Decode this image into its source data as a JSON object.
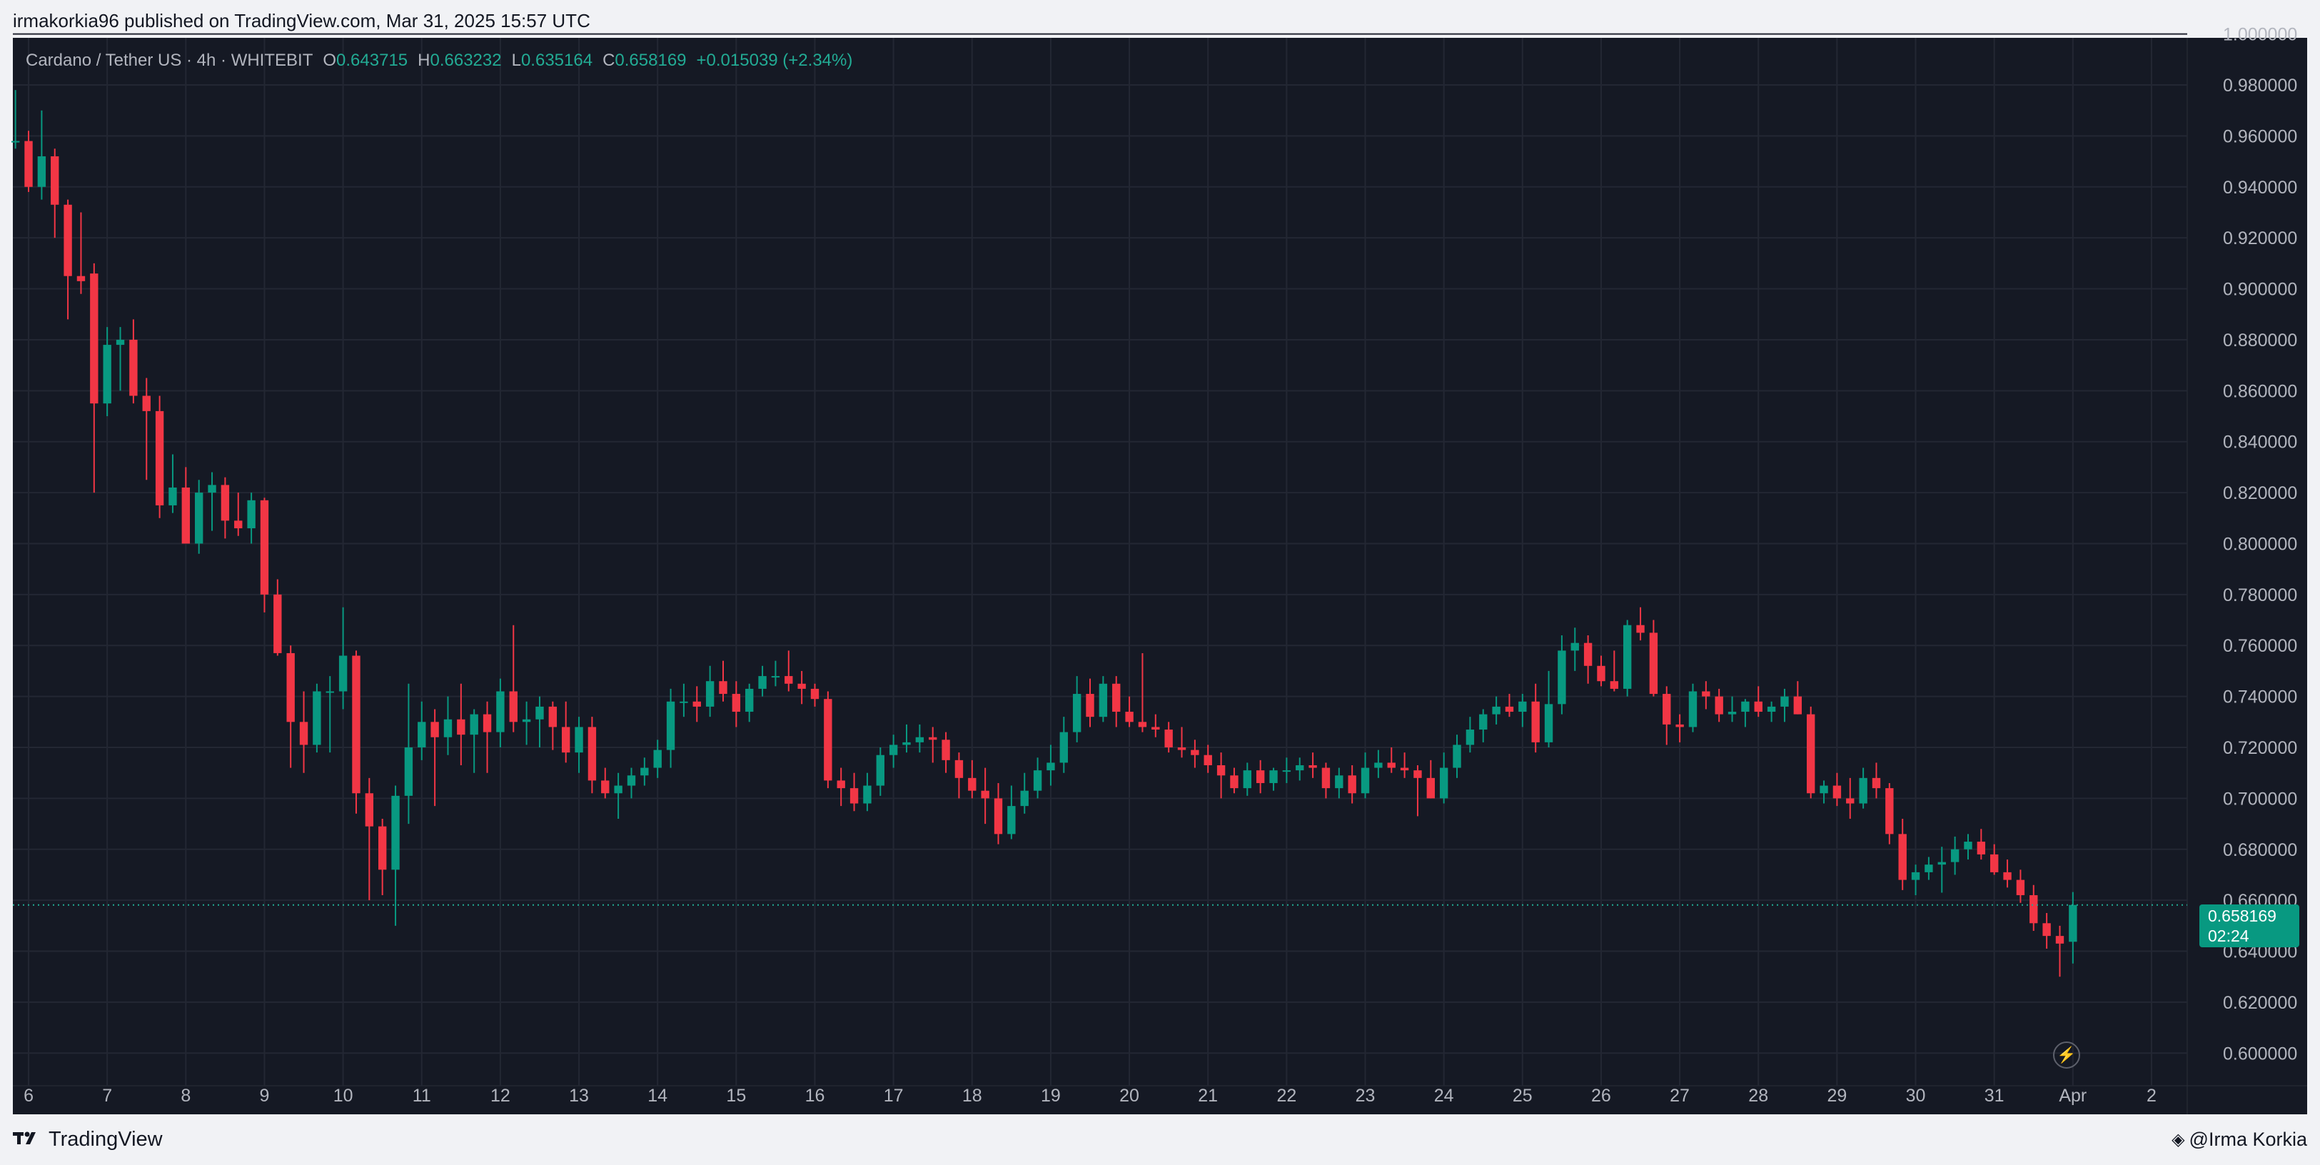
{
  "header": {
    "publisher_line": "irmakorkia96 published on TradingView.com, Mar 31, 2025 15:57 UTC"
  },
  "legend": {
    "symbol_line": "Cardano / Tether US · 4h · WHITEBIT",
    "o_label": "O",
    "o_value": "0.643715",
    "h_label": "H",
    "h_value": "0.663232",
    "l_label": "L",
    "l_value": "0.635164",
    "c_label": "C",
    "c_value": "0.658169",
    "change": "+0.015039 (+2.34%)"
  },
  "price_tag": {
    "price": "0.658169",
    "countdown": "02:24"
  },
  "footer": {
    "brand": "TradingView",
    "author": "@Irma Korkia"
  },
  "icons": {
    "bolt": "lightning-icon",
    "brand_logo": "tradingview-logo-icon",
    "author_mark": "diamond-icon"
  },
  "colors": {
    "background": "#151924",
    "grid": "#232733",
    "up": "#089981",
    "down": "#f23645",
    "axis_text": "#b2b5be",
    "last_price_line": "#22ab94"
  },
  "chart_data": {
    "type": "candlestick",
    "title": "Cardano / Tether US · 4h · WHITEBIT",
    "interval": "4h",
    "ylim": [
      0.59,
      0.9985
    ],
    "xlim_days": [
      5.8,
      33.4
    ],
    "y_ticks": [
      "1.000000",
      "0.980000",
      "0.960000",
      "0.940000",
      "0.920000",
      "0.900000",
      "0.880000",
      "0.860000",
      "0.840000",
      "0.820000",
      "0.800000",
      "0.780000",
      "0.760000",
      "0.740000",
      "0.720000",
      "0.700000",
      "0.680000",
      "0.660000",
      "0.640000",
      "0.620000",
      "0.600000"
    ],
    "y_tick_values": [
      1.0,
      0.98,
      0.96,
      0.94,
      0.92,
      0.9,
      0.88,
      0.86,
      0.84,
      0.82,
      0.8,
      0.78,
      0.76,
      0.74,
      0.72,
      0.7,
      0.68,
      0.66,
      0.64,
      0.62,
      0.6
    ],
    "x_ticks": [
      {
        "label": "6",
        "day": 6
      },
      {
        "label": "7",
        "day": 7
      },
      {
        "label": "8",
        "day": 8
      },
      {
        "label": "9",
        "day": 9
      },
      {
        "label": "10",
        "day": 10
      },
      {
        "label": "11",
        "day": 11
      },
      {
        "label": "12",
        "day": 12
      },
      {
        "label": "13",
        "day": 13
      },
      {
        "label": "14",
        "day": 14
      },
      {
        "label": "15",
        "day": 15
      },
      {
        "label": "16",
        "day": 16
      },
      {
        "label": "17",
        "day": 17
      },
      {
        "label": "18",
        "day": 18
      },
      {
        "label": "19",
        "day": 19
      },
      {
        "label": "20",
        "day": 20
      },
      {
        "label": "21",
        "day": 21
      },
      {
        "label": "22",
        "day": 22
      },
      {
        "label": "23",
        "day": 23
      },
      {
        "label": "24",
        "day": 24
      },
      {
        "label": "25",
        "day": 25
      },
      {
        "label": "26",
        "day": 26
      },
      {
        "label": "27",
        "day": 27
      },
      {
        "label": "28",
        "day": 28
      },
      {
        "label": "29",
        "day": 29
      },
      {
        "label": "30",
        "day": 30
      },
      {
        "label": "31",
        "day": 31
      },
      {
        "label": "Apr",
        "day": 32
      },
      {
        "label": "2",
        "day": 33
      }
    ],
    "first_candle_day": 5.8333,
    "candle_step_days": 0.16667,
    "last_price": 0.658169,
    "candles_ohlc": [
      [
        0.958,
        0.978,
        0.955,
        0.958
      ],
      [
        0.958,
        0.962,
        0.938,
        0.94
      ],
      [
        0.94,
        0.97,
        0.935,
        0.952
      ],
      [
        0.952,
        0.955,
        0.92,
        0.933
      ],
      [
        0.933,
        0.935,
        0.888,
        0.905
      ],
      [
        0.905,
        0.93,
        0.898,
        0.903
      ],
      [
        0.906,
        0.91,
        0.82,
        0.855
      ],
      [
        0.855,
        0.885,
        0.85,
        0.878
      ],
      [
        0.878,
        0.885,
        0.86,
        0.88
      ],
      [
        0.88,
        0.888,
        0.855,
        0.858
      ],
      [
        0.858,
        0.865,
        0.825,
        0.852
      ],
      [
        0.852,
        0.858,
        0.81,
        0.815
      ],
      [
        0.815,
        0.835,
        0.812,
        0.822
      ],
      [
        0.822,
        0.83,
        0.8,
        0.8
      ],
      [
        0.8,
        0.825,
        0.796,
        0.82
      ],
      [
        0.82,
        0.828,
        0.805,
        0.823
      ],
      [
        0.823,
        0.826,
        0.802,
        0.809
      ],
      [
        0.809,
        0.82,
        0.803,
        0.806
      ],
      [
        0.806,
        0.82,
        0.8,
        0.817
      ],
      [
        0.817,
        0.818,
        0.773,
        0.78
      ],
      [
        0.78,
        0.786,
        0.756,
        0.757
      ],
      [
        0.757,
        0.76,
        0.712,
        0.73
      ],
      [
        0.73,
        0.742,
        0.71,
        0.721
      ],
      [
        0.721,
        0.745,
        0.718,
        0.742
      ],
      [
        0.742,
        0.748,
        0.718,
        0.742
      ],
      [
        0.742,
        0.775,
        0.735,
        0.756
      ],
      [
        0.756,
        0.758,
        0.694,
        0.702
      ],
      [
        0.702,
        0.708,
        0.66,
        0.689
      ],
      [
        0.689,
        0.692,
        0.662,
        0.672
      ],
      [
        0.672,
        0.705,
        0.65,
        0.701
      ],
      [
        0.701,
        0.745,
        0.69,
        0.72
      ],
      [
        0.72,
        0.738,
        0.715,
        0.73
      ],
      [
        0.73,
        0.735,
        0.697,
        0.724
      ],
      [
        0.724,
        0.74,
        0.717,
        0.731
      ],
      [
        0.731,
        0.745,
        0.713,
        0.725
      ],
      [
        0.725,
        0.735,
        0.71,
        0.733
      ],
      [
        0.733,
        0.738,
        0.71,
        0.726
      ],
      [
        0.726,
        0.747,
        0.72,
        0.742
      ],
      [
        0.742,
        0.768,
        0.726,
        0.73
      ],
      [
        0.73,
        0.738,
        0.721,
        0.731
      ],
      [
        0.731,
        0.74,
        0.72,
        0.736
      ],
      [
        0.736,
        0.738,
        0.719,
        0.728
      ],
      [
        0.728,
        0.738,
        0.714,
        0.718
      ],
      [
        0.718,
        0.732,
        0.71,
        0.728
      ],
      [
        0.728,
        0.732,
        0.702,
        0.707
      ],
      [
        0.707,
        0.712,
        0.7,
        0.702
      ],
      [
        0.702,
        0.71,
        0.692,
        0.705
      ],
      [
        0.705,
        0.712,
        0.7,
        0.709
      ],
      [
        0.709,
        0.716,
        0.705,
        0.712
      ],
      [
        0.712,
        0.723,
        0.708,
        0.719
      ],
      [
        0.719,
        0.743,
        0.712,
        0.738
      ],
      [
        0.738,
        0.745,
        0.732,
        0.738
      ],
      [
        0.738,
        0.744,
        0.73,
        0.736
      ],
      [
        0.736,
        0.752,
        0.732,
        0.746
      ],
      [
        0.746,
        0.754,
        0.738,
        0.741
      ],
      [
        0.741,
        0.746,
        0.728,
        0.734
      ],
      [
        0.734,
        0.745,
        0.73,
        0.743
      ],
      [
        0.743,
        0.752,
        0.74,
        0.748
      ],
      [
        0.748,
        0.754,
        0.744,
        0.748
      ],
      [
        0.748,
        0.758,
        0.742,
        0.745
      ],
      [
        0.745,
        0.75,
        0.737,
        0.743
      ],
      [
        0.743,
        0.745,
        0.736,
        0.739
      ],
      [
        0.739,
        0.742,
        0.704,
        0.707
      ],
      [
        0.707,
        0.712,
        0.697,
        0.704
      ],
      [
        0.704,
        0.71,
        0.695,
        0.698
      ],
      [
        0.698,
        0.71,
        0.695,
        0.705
      ],
      [
        0.705,
        0.72,
        0.701,
        0.717
      ],
      [
        0.717,
        0.725,
        0.712,
        0.721
      ],
      [
        0.721,
        0.729,
        0.718,
        0.722
      ],
      [
        0.722,
        0.729,
        0.718,
        0.724
      ],
      [
        0.724,
        0.728,
        0.714,
        0.723
      ],
      [
        0.723,
        0.726,
        0.71,
        0.715
      ],
      [
        0.715,
        0.718,
        0.7,
        0.708
      ],
      [
        0.708,
        0.715,
        0.7,
        0.703
      ],
      [
        0.703,
        0.712,
        0.69,
        0.7
      ],
      [
        0.7,
        0.706,
        0.682,
        0.686
      ],
      [
        0.686,
        0.705,
        0.684,
        0.697
      ],
      [
        0.697,
        0.71,
        0.694,
        0.703
      ],
      [
        0.703,
        0.716,
        0.7,
        0.711
      ],
      [
        0.711,
        0.721,
        0.705,
        0.714
      ],
      [
        0.714,
        0.732,
        0.71,
        0.726
      ],
      [
        0.726,
        0.748,
        0.722,
        0.741
      ],
      [
        0.741,
        0.747,
        0.728,
        0.732
      ],
      [
        0.732,
        0.748,
        0.73,
        0.745
      ],
      [
        0.745,
        0.748,
        0.728,
        0.734
      ],
      [
        0.734,
        0.74,
        0.728,
        0.73
      ],
      [
        0.73,
        0.757,
        0.726,
        0.728
      ],
      [
        0.728,
        0.733,
        0.724,
        0.727
      ],
      [
        0.727,
        0.73,
        0.718,
        0.72
      ],
      [
        0.72,
        0.728,
        0.716,
        0.719
      ],
      [
        0.719,
        0.723,
        0.712,
        0.717
      ],
      [
        0.717,
        0.721,
        0.71,
        0.713
      ],
      [
        0.713,
        0.718,
        0.7,
        0.709
      ],
      [
        0.709,
        0.712,
        0.702,
        0.704
      ],
      [
        0.704,
        0.714,
        0.701,
        0.711
      ],
      [
        0.711,
        0.715,
        0.702,
        0.706
      ],
      [
        0.706,
        0.712,
        0.703,
        0.711
      ],
      [
        0.711,
        0.716,
        0.706,
        0.711
      ],
      [
        0.711,
        0.716,
        0.707,
        0.713
      ],
      [
        0.713,
        0.718,
        0.708,
        0.712
      ],
      [
        0.712,
        0.714,
        0.7,
        0.704
      ],
      [
        0.704,
        0.712,
        0.7,
        0.709
      ],
      [
        0.709,
        0.713,
        0.698,
        0.702
      ],
      [
        0.702,
        0.718,
        0.7,
        0.712
      ],
      [
        0.712,
        0.719,
        0.708,
        0.714
      ],
      [
        0.714,
        0.72,
        0.71,
        0.712
      ],
      [
        0.712,
        0.718,
        0.708,
        0.711
      ],
      [
        0.711,
        0.713,
        0.693,
        0.708
      ],
      [
        0.708,
        0.715,
        0.7,
        0.7
      ],
      [
        0.7,
        0.718,
        0.698,
        0.712
      ],
      [
        0.712,
        0.725,
        0.708,
        0.721
      ],
      [
        0.721,
        0.732,
        0.718,
        0.727
      ],
      [
        0.727,
        0.735,
        0.722,
        0.733
      ],
      [
        0.733,
        0.74,
        0.729,
        0.736
      ],
      [
        0.736,
        0.741,
        0.732,
        0.734
      ],
      [
        0.734,
        0.741,
        0.728,
        0.738
      ],
      [
        0.738,
        0.745,
        0.718,
        0.722
      ],
      [
        0.722,
        0.75,
        0.72,
        0.737
      ],
      [
        0.737,
        0.764,
        0.733,
        0.758
      ],
      [
        0.758,
        0.767,
        0.75,
        0.761
      ],
      [
        0.761,
        0.764,
        0.745,
        0.752
      ],
      [
        0.752,
        0.756,
        0.744,
        0.746
      ],
      [
        0.746,
        0.758,
        0.742,
        0.743
      ],
      [
        0.743,
        0.77,
        0.74,
        0.768
      ],
      [
        0.768,
        0.775,
        0.762,
        0.765
      ],
      [
        0.765,
        0.77,
        0.74,
        0.741
      ],
      [
        0.741,
        0.744,
        0.721,
        0.729
      ],
      [
        0.729,
        0.733,
        0.722,
        0.728
      ],
      [
        0.728,
        0.745,
        0.726,
        0.742
      ],
      [
        0.742,
        0.746,
        0.735,
        0.74
      ],
      [
        0.74,
        0.743,
        0.73,
        0.733
      ],
      [
        0.733,
        0.74,
        0.73,
        0.734
      ],
      [
        0.734,
        0.739,
        0.728,
        0.738
      ],
      [
        0.738,
        0.744,
        0.732,
        0.734
      ],
      [
        0.734,
        0.738,
        0.73,
        0.736
      ],
      [
        0.736,
        0.743,
        0.73,
        0.74
      ],
      [
        0.74,
        0.746,
        0.733,
        0.733
      ],
      [
        0.733,
        0.736,
        0.7,
        0.702
      ],
      [
        0.702,
        0.707,
        0.698,
        0.705
      ],
      [
        0.705,
        0.71,
        0.697,
        0.7
      ],
      [
        0.7,
        0.708,
        0.692,
        0.698
      ],
      [
        0.698,
        0.712,
        0.696,
        0.708
      ],
      [
        0.708,
        0.714,
        0.7,
        0.704
      ],
      [
        0.704,
        0.706,
        0.682,
        0.686
      ],
      [
        0.686,
        0.692,
        0.664,
        0.668
      ],
      [
        0.668,
        0.674,
        0.662,
        0.671
      ],
      [
        0.671,
        0.677,
        0.668,
        0.674
      ],
      [
        0.674,
        0.681,
        0.663,
        0.675
      ],
      [
        0.675,
        0.685,
        0.67,
        0.68
      ],
      [
        0.68,
        0.686,
        0.676,
        0.683
      ],
      [
        0.683,
        0.688,
        0.676,
        0.678
      ],
      [
        0.678,
        0.682,
        0.67,
        0.671
      ],
      [
        0.671,
        0.676,
        0.665,
        0.668
      ],
      [
        0.668,
        0.672,
        0.659,
        0.662
      ],
      [
        0.662,
        0.666,
        0.648,
        0.651
      ],
      [
        0.651,
        0.655,
        0.641,
        0.646
      ],
      [
        0.646,
        0.65,
        0.63,
        0.643
      ],
      [
        0.643715,
        0.663232,
        0.635164,
        0.658169
      ]
    ]
  }
}
